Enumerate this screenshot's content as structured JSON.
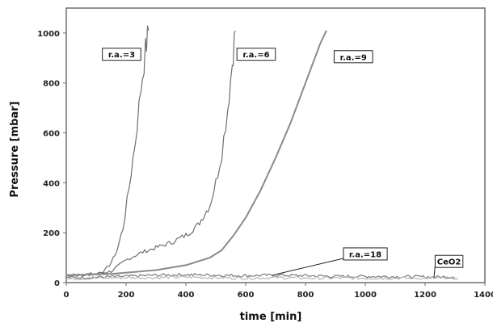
{
  "chart_data": {
    "type": "line",
    "xlabel": "time [min]",
    "ylabel": "Pressure [mbar]",
    "xlim": [
      0,
      1400
    ],
    "ylim": [
      0,
      1100
    ],
    "xticks": [
      0,
      200,
      400,
      600,
      800,
      1000,
      1200,
      1400
    ],
    "yticks": [
      0,
      200,
      400,
      600,
      800,
      1000
    ],
    "grid": false,
    "legend": "none",
    "series": [
      {
        "name": "r.a.=3",
        "color": "#6f6f6f",
        "noisy": true,
        "x": [
          0,
          60,
          100,
          130,
          150,
          170,
          190,
          210,
          230,
          250,
          265,
          275
        ],
        "y": [
          30,
          30,
          35,
          50,
          80,
          130,
          220,
          380,
          560,
          780,
          930,
          1010
        ]
      },
      {
        "name": "r.a.=6",
        "color": "#6f6f6f",
        "noisy": true,
        "x": [
          0,
          100,
          150,
          200,
          250,
          300,
          350,
          400,
          440,
          480,
          500,
          520,
          540,
          555,
          565
        ],
        "y": [
          30,
          35,
          45,
          90,
          120,
          140,
          160,
          190,
          230,
          310,
          400,
          520,
          700,
          880,
          1010
        ]
      },
      {
        "name": "r.a.=9",
        "color": "#8a8a8a",
        "noisy": false,
        "x": [
          0,
          150,
          300,
          400,
          480,
          520,
          560,
          600,
          650,
          700,
          750,
          800,
          850,
          870
        ],
        "y": [
          30,
          35,
          50,
          70,
          100,
          130,
          190,
          260,
          370,
          500,
          640,
          800,
          960,
          1010
        ]
      },
      {
        "name": "r.a.=18",
        "color": "#7a7a7a",
        "noisy": true,
        "x": [
          0,
          100,
          200,
          300,
          400,
          500,
          600,
          700,
          800,
          900,
          1000,
          1100,
          1200,
          1300
        ],
        "y": [
          20,
          22,
          25,
          30,
          32,
          30,
          28,
          30,
          28,
          25,
          25,
          24,
          23,
          22
        ]
      },
      {
        "name": "CeO2",
        "color": "#b8b8b8",
        "noisy": true,
        "x": [
          0,
          100,
          200,
          300,
          400,
          500,
          600,
          700,
          800,
          900,
          1000,
          1100,
          1200,
          1310
        ],
        "y": [
          15,
          18,
          20,
          20,
          22,
          20,
          18,
          20,
          18,
          18,
          18,
          18,
          18,
          18
        ]
      }
    ],
    "annotations": [
      {
        "text": "r.a.=3",
        "x": 185,
        "y": 915
      },
      {
        "text": "r.a.=6",
        "x": 635,
        "y": 915
      },
      {
        "text": "r.a.=9",
        "x": 960,
        "y": 905
      },
      {
        "text": "r.a.=18",
        "x": 1000,
        "y": 115,
        "arrow_to": [
          690,
          30
        ]
      },
      {
        "text": "CeO2",
        "x": 1280,
        "y": 85,
        "arrow_to": [
          1230,
          22
        ]
      }
    ]
  }
}
